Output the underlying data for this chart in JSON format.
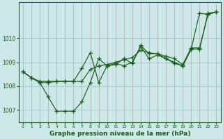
{
  "xlabel": "Graphe pression niveau de la mer (hPa)",
  "background_color": "#cce8e8",
  "grid_color": "#aacccc",
  "line_color": "#1a5c1a",
  "ylim": [
    1006.5,
    1011.5
  ],
  "xlim": [
    -0.5,
    23.5
  ],
  "yticks": [
    1007,
    1008,
    1009,
    1010
  ],
  "xticks": [
    0,
    1,
    2,
    3,
    4,
    5,
    6,
    7,
    8,
    9,
    10,
    11,
    12,
    13,
    14,
    15,
    16,
    17,
    18,
    19,
    20,
    21,
    22,
    23
  ],
  "series": [
    [
      1008.6,
      1008.35,
      1008.2,
      1008.2,
      1008.2,
      1008.2,
      1008.2,
      1008.2,
      1008.7,
      1008.85,
      1008.9,
      1009.0,
      1009.1,
      1009.2,
      1009.5,
      1009.4,
      1009.35,
      1009.25,
      1009.15,
      1008.9,
      1009.6,
      1009.6,
      1011.0,
      1011.1
    ],
    [
      1008.6,
      1008.35,
      1008.15,
      1007.55,
      1006.95,
      1006.95,
      1006.95,
      1007.35,
      1008.15,
      1009.15,
      1008.85,
      1008.95,
      1008.85,
      1009.0,
      1009.65,
      1009.15,
      1009.3,
      1009.15,
      1008.95,
      1008.85,
      1009.55,
      1009.55,
      1011.05,
      1011.1
    ],
    [
      1008.6,
      1008.35,
      1008.15,
      1008.15,
      1008.2,
      1008.2,
      1008.2,
      1008.75,
      1009.4,
      1008.15,
      1008.85,
      1008.9,
      1009.15,
      1008.95,
      1009.7,
      1009.35,
      1009.35,
      1009.15,
      1009.0,
      1008.85,
      1009.55,
      1011.05,
      1011.0,
      1011.1
    ]
  ]
}
